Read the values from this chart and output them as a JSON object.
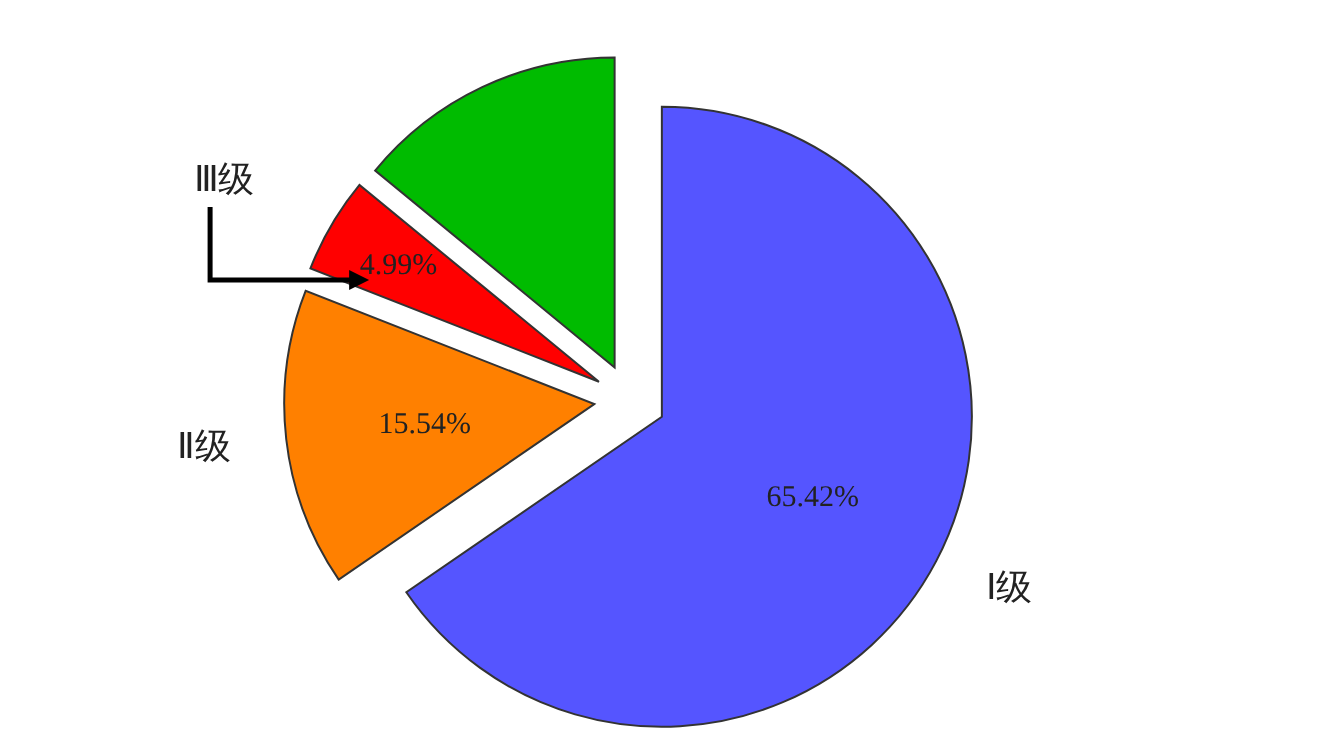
{
  "chart_data": {
    "type": "pie",
    "categories": [
      "Ⅰ级",
      "Ⅱ级",
      "Ⅲ级",
      null
    ],
    "values": [
      65.42,
      15.54,
      4.99,
      14.05
    ],
    "colors": [
      "#5555ff",
      "#ff8000",
      "#ff0000",
      "#00bb00"
    ],
    "value_labels": [
      "65.42%",
      "15.54%",
      "4.99%",
      null
    ],
    "legend": false
  }
}
